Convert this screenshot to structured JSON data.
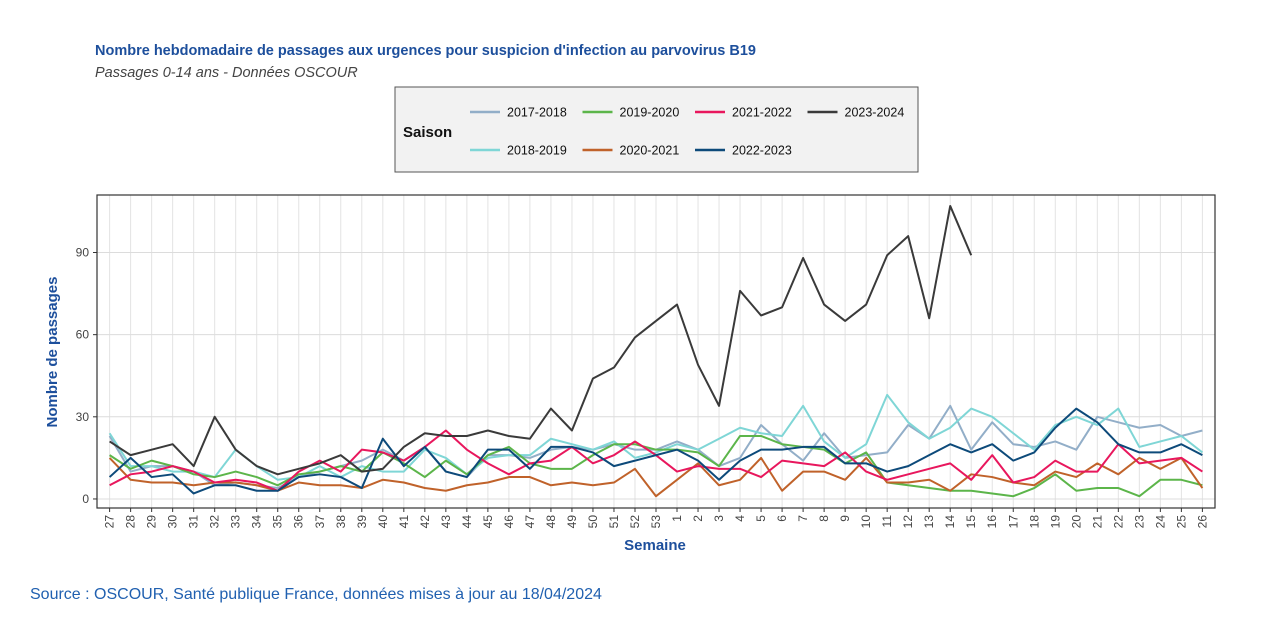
{
  "chart_data": {
    "type": "line",
    "title": "Nombre hebdomadaire de passages aux urgences pour suspicion d'infection au parvovirus B19",
    "subtitle": "Passages 0-14 ans - Données OSCOUR",
    "legend_title": "Saison",
    "x_label": "Semaine",
    "y_label": "Nombre de passages",
    "source": "Source : OSCOUR, Santé publique France, données mises à jour au 18/04/2024",
    "categories": [
      "27",
      "28",
      "29",
      "30",
      "31",
      "32",
      "33",
      "34",
      "35",
      "36",
      "37",
      "38",
      "39",
      "40",
      "41",
      "42",
      "43",
      "44",
      "45",
      "46",
      "47",
      "48",
      "49",
      "50",
      "51",
      "52",
      "53",
      "1",
      "2",
      "3",
      "4",
      "5",
      "6",
      "7",
      "8",
      "9",
      "10",
      "11",
      "12",
      "13",
      "14",
      "15",
      "16",
      "17",
      "18",
      "19",
      "20",
      "21",
      "22",
      "23",
      "24",
      "25",
      "26"
    ],
    "ylim": [
      -3.3,
      111
    ],
    "yticks": [
      0,
      30,
      60,
      90
    ],
    "grid": true,
    "legend_position": "top",
    "series": [
      {
        "name": "2017-2018",
        "color": "#92aec8",
        "values": [
          23,
          10,
          12,
          12,
          10,
          5,
          6,
          5,
          4,
          8,
          10,
          12,
          14,
          18,
          14,
          19,
          10,
          8,
          16,
          16,
          15,
          18,
          19,
          18,
          20,
          18,
          18,
          21,
          18,
          12,
          15,
          27,
          20,
          14,
          24,
          15,
          16,
          17,
          27,
          22,
          34,
          18,
          28,
          20,
          19,
          21,
          18,
          30,
          28,
          26,
          27,
          23,
          25
        ]
      },
      {
        "name": "2018-2019",
        "color": "#7fd6d6",
        "values": [
          24,
          12,
          12,
          10,
          10,
          8,
          18,
          12,
          7,
          8,
          12,
          8,
          12,
          10,
          10,
          18,
          15,
          9,
          15,
          16,
          16,
          22,
          20,
          18,
          21,
          15,
          17,
          20,
          18,
          22,
          26,
          24,
          23,
          34,
          21,
          15,
          20,
          38,
          28,
          22,
          26,
          33,
          30,
          24,
          18,
          27,
          30,
          27,
          33,
          19,
          21,
          23,
          17
        ]
      },
      {
        "name": "2019-2020",
        "color": "#5cb54a",
        "values": [
          16,
          11,
          14,
          12,
          9,
          8,
          10,
          8,
          5,
          9,
          10,
          12,
          10,
          17,
          13,
          8,
          14,
          9,
          16,
          19,
          13,
          11,
          11,
          16,
          20,
          20,
          18,
          18,
          17,
          12,
          23,
          23,
          20,
          19,
          18,
          13,
          17,
          6,
          5,
          4,
          3,
          3,
          2,
          1,
          4,
          9,
          3,
          4,
          4,
          1,
          7,
          7,
          5
        ]
      },
      {
        "name": "2020-2021",
        "color": "#c0622a",
        "values": [
          15,
          7,
          6,
          6,
          5,
          6,
          6,
          5,
          3,
          6,
          5,
          5,
          4,
          7,
          6,
          4,
          3,
          5,
          6,
          8,
          8,
          5,
          6,
          5,
          6,
          11,
          1,
          7,
          13,
          5,
          7,
          15,
          3,
          10,
          10,
          7,
          15,
          6,
          6,
          7,
          3,
          9,
          8,
          6,
          5,
          10,
          8,
          13,
          9,
          15,
          11,
          15,
          4
        ]
      },
      {
        "name": "2021-2022",
        "color": "#e8175d",
        "values": [
          5,
          9,
          10,
          12,
          10,
          6,
          7,
          6,
          3,
          10,
          14,
          10,
          18,
          17,
          14,
          19,
          25,
          18,
          13,
          9,
          13,
          14,
          19,
          13,
          16,
          21,
          16,
          10,
          12,
          11,
          11,
          8,
          14,
          13,
          12,
          17,
          10,
          7,
          9,
          11,
          13,
          7,
          16,
          6,
          8,
          14,
          10,
          10,
          20,
          13,
          14,
          15,
          10
        ]
      },
      {
        "name": "2022-2023",
        "color": "#0d4a7a",
        "values": [
          8,
          15,
          8,
          9,
          2,
          5,
          5,
          3,
          3,
          8,
          9,
          8,
          4,
          22,
          12,
          19,
          10,
          8,
          18,
          18,
          11,
          19,
          19,
          17,
          12,
          14,
          16,
          18,
          14,
          7,
          14,
          18,
          18,
          19,
          19,
          13,
          13,
          10,
          12,
          16,
          20,
          17,
          20,
          14,
          17,
          26,
          33,
          28,
          20,
          17,
          17,
          20,
          16
        ]
      },
      {
        "name": "2023-2024",
        "color": "#3a3a3a",
        "values": [
          21,
          16,
          18,
          20,
          12,
          30,
          18,
          12,
          9,
          11,
          13,
          16,
          10,
          11,
          19,
          24,
          23,
          23,
          25,
          23,
          22,
          33,
          25,
          44,
          48,
          59,
          65,
          71,
          49,
          34,
          76,
          67,
          70,
          88,
          71,
          65,
          71,
          89,
          96,
          66,
          107,
          89,
          null,
          null,
          null,
          null,
          null,
          null,
          null,
          null,
          null,
          null,
          null
        ]
      }
    ]
  }
}
